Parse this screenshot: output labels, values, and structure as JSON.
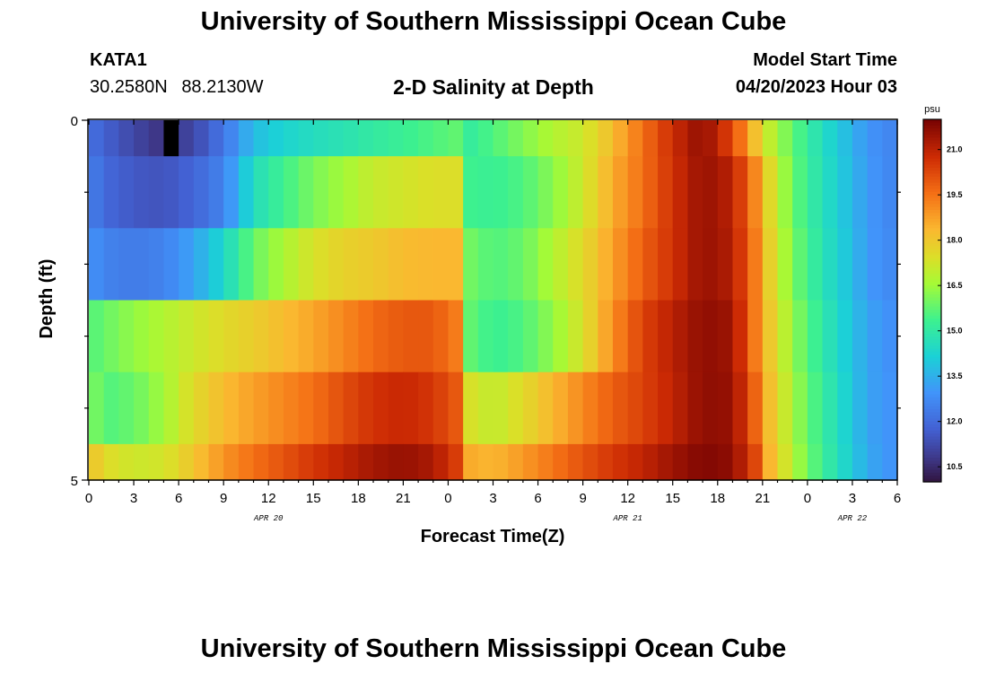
{
  "header": {
    "title": "University of Southern Mississippi Ocean Cube",
    "station": "KATA1",
    "lat": "30.2580N",
    "lon": "88.2130W",
    "model_start_label": "Model Start Time",
    "model_start_value": "04/20/2023 Hour 03"
  },
  "footer": {
    "title": "University of Southern Mississippi Ocean Cube"
  },
  "chart_data": {
    "type": "heatmap",
    "title": "2-D Salinity at Depth",
    "xlabel": "Forecast Time(Z)",
    "ylabel": "Depth (ft)",
    "x_range_hours": [
      0,
      54
    ],
    "y_range_ft": [
      0,
      5
    ],
    "x_ticks": [
      "0",
      "3",
      "6",
      "9",
      "12",
      "15",
      "18",
      "21",
      "0",
      "3",
      "6",
      "9",
      "12",
      "15",
      "18",
      "21",
      "0",
      "3",
      "6"
    ],
    "y_tick_labels": [
      "0",
      "5"
    ],
    "y_minor_ticks": [
      1,
      2,
      3,
      4
    ],
    "date_labels": [
      {
        "text": "APR 20",
        "hour": 12
      },
      {
        "text": "APR 21",
        "hour": 36
      },
      {
        "text": "APR 22",
        "hour": 51
      }
    ],
    "colorbar": {
      "unit": "psu",
      "min": 10.0,
      "max": 22.0,
      "ticks": [
        "21.0",
        "19.5",
        "18.0",
        "16.5",
        "15.0",
        "13.5",
        "12.0",
        "10.5"
      ]
    },
    "row_depths_ft": [
      0,
      1,
      2,
      3,
      4,
      5
    ],
    "keypoint_hours": [
      0,
      1,
      3,
      5,
      7,
      9,
      11,
      13,
      15,
      17,
      19,
      21,
      23,
      24.5,
      25.5,
      27,
      29,
      31,
      33,
      35,
      37,
      39,
      41,
      43,
      44.5,
      45.5,
      47,
      49,
      51,
      52,
      54
    ],
    "rows": [
      [
        12.2,
        11.8,
        11.2,
        10.7,
        11.2,
        12.3,
        13.8,
        14.3,
        14.6,
        14.8,
        15.1,
        15.3,
        15.6,
        15.8,
        15.2,
        15.6,
        16.2,
        16.8,
        17.2,
        18.3,
        19.6,
        20.8,
        21.7,
        20.3,
        18.2,
        17.0,
        15.8,
        14.6,
        13.6,
        13.0,
        12.6
      ],
      [
        12.6,
        12.0,
        11.6,
        11.5,
        11.9,
        12.6,
        14.6,
        15.4,
        16.1,
        16.6,
        17.1,
        17.3,
        17.5,
        17.5,
        15.4,
        15.3,
        15.6,
        16.3,
        17.2,
        18.6,
        19.6,
        20.7,
        21.6,
        21.1,
        19.2,
        17.6,
        15.9,
        14.7,
        13.7,
        13.1,
        12.6
      ],
      [
        13.0,
        12.6,
        12.4,
        12.6,
        13.3,
        14.4,
        15.9,
        16.7,
        17.4,
        17.8,
        18.0,
        18.3,
        18.4,
        18.4,
        16.0,
        15.6,
        15.9,
        16.8,
        17.6,
        18.8,
        19.9,
        20.7,
        21.6,
        21.2,
        19.4,
        17.8,
        16.1,
        14.8,
        13.8,
        13.1,
        12.7
      ],
      [
        15.6,
        15.9,
        16.4,
        16.8,
        17.2,
        17.6,
        17.9,
        18.3,
        18.7,
        19.2,
        19.7,
        20.0,
        20.0,
        19.4,
        15.8,
        15.3,
        15.6,
        16.4,
        17.4,
        19.1,
        20.4,
        21.1,
        21.7,
        21.5,
        19.4,
        18.0,
        16.4,
        15.0,
        13.9,
        13.3,
        12.8
      ],
      [
        16.4,
        15.6,
        15.9,
        16.6,
        17.6,
        18.3,
        18.8,
        19.2,
        19.6,
        20.2,
        20.7,
        20.9,
        20.6,
        20.0,
        17.4,
        17.0,
        17.6,
        18.4,
        19.2,
        19.9,
        20.4,
        21.0,
        21.7,
        21.6,
        19.8,
        18.2,
        16.6,
        15.2,
        14.0,
        13.3,
        12.9
      ],
      [
        18.3,
        17.6,
        17.2,
        17.3,
        18.1,
        19.0,
        19.6,
        20.1,
        20.6,
        21.0,
        21.4,
        21.6,
        21.3,
        20.5,
        18.6,
        18.4,
        18.9,
        19.5,
        20.1,
        20.6,
        21.0,
        21.5,
        21.9,
        21.7,
        20.3,
        18.4,
        16.8,
        15.3,
        14.1,
        13.4,
        12.9
      ]
    ],
    "missing_cell": {
      "hour": 5,
      "row": 0
    }
  }
}
